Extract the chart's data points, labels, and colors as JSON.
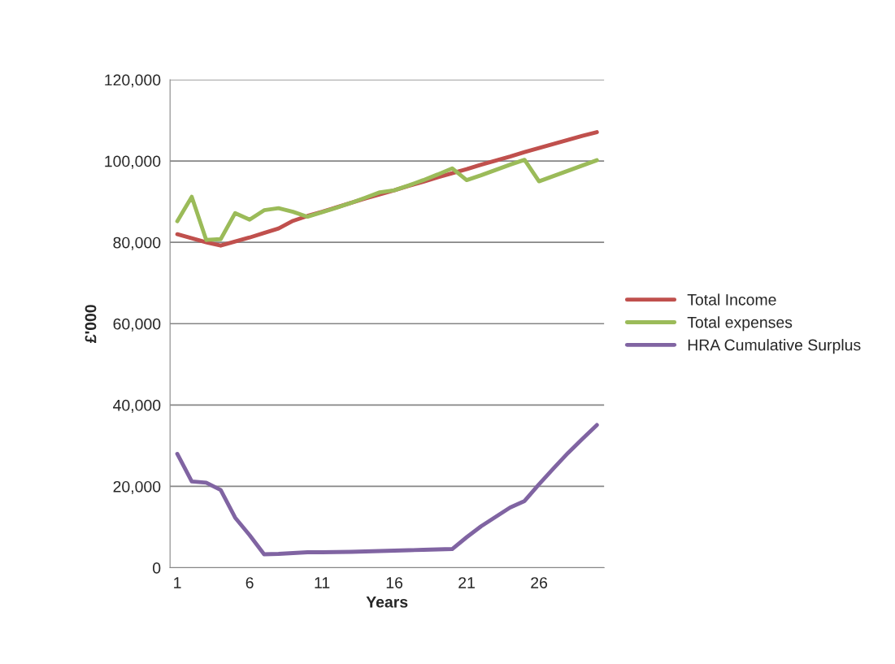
{
  "chart_data": {
    "type": "line",
    "xlabel": "Years",
    "ylabel": "£'000",
    "categories": [
      "1",
      null,
      null,
      null,
      null,
      "6",
      null,
      null,
      null,
      null,
      "11",
      null,
      null,
      null,
      null,
      "16",
      null,
      null,
      null,
      null,
      "21",
      null,
      null,
      null,
      null,
      "26",
      null,
      null,
      null,
      null
    ],
    "series": [
      {
        "name": "Total Income",
        "color": "#c0504d",
        "values": [
          82000,
          81000,
          80000,
          79200,
          80200,
          81200,
          82300,
          83400,
          85300,
          86500,
          87500,
          88600,
          89700,
          90800,
          91800,
          92800,
          93900,
          94900,
          96000,
          97000,
          98000,
          99100,
          100100,
          101100,
          102200,
          103200,
          104200,
          105200,
          106200,
          107100
        ]
      },
      {
        "name": "Total expenses",
        "color": "#9bbb59",
        "values": [
          85200,
          91200,
          80600,
          80800,
          87200,
          85600,
          87900,
          88400,
          87500,
          86300,
          87400,
          88500,
          89700,
          91000,
          92300,
          92800,
          94000,
          95300,
          96700,
          98200,
          95300,
          96500,
          97800,
          99100,
          100300,
          95000,
          96300,
          97600,
          98900,
          100200
        ]
      },
      {
        "name": "HRA Cumulative Surplus",
        "color": "#8064a2",
        "values": [
          28000,
          21200,
          20900,
          19100,
          12300,
          8000,
          3300,
          3400,
          3600,
          3800,
          3800,
          3850,
          3900,
          4000,
          4100,
          4200,
          4300,
          4400,
          4500,
          4600,
          7500,
          10200,
          12500,
          14800,
          16400,
          20500,
          24400,
          28200,
          31700,
          35100
        ]
      }
    ],
    "ylim": [
      0,
      120000
    ],
    "yticks": [
      0,
      {
        "value": 20000,
        "label": "20,000"
      },
      {
        "value": 40000,
        "label": "40,000"
      },
      {
        "value": 60000,
        "label": "60,000"
      },
      {
        "value": 80000,
        "label": "80,000"
      },
      {
        "value": 100000,
        "label": "100,000"
      },
      {
        "value": 120000,
        "label": "120,000"
      }
    ],
    "grid": "y",
    "legend": "right",
    "marker": "none",
    "line_style": "solid"
  }
}
